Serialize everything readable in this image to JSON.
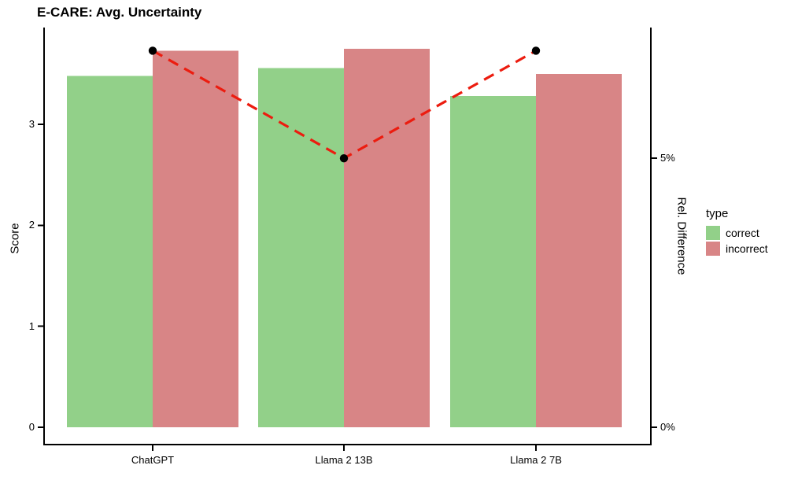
{
  "chart_data": {
    "type": "bar",
    "title": "E-CARE: Avg. Uncertainty",
    "categories": [
      "ChatGPT",
      "Llama 2 13B",
      "Llama 2 7B"
    ],
    "series": [
      {
        "name": "correct",
        "color": "#92D089",
        "values": [
          3.48,
          3.56,
          3.28
        ]
      },
      {
        "name": "incorrect",
        "color": "#D88586",
        "values": [
          3.73,
          3.75,
          3.5
        ]
      }
    ],
    "line_series": {
      "name": "Rel. Difference",
      "axis": "right",
      "style": "dashed",
      "color": "#EC1C0F",
      "marker_color": "#000000",
      "values_pct": [
        7.0,
        5.0,
        7.0
      ]
    },
    "left_axis": {
      "label": "Score",
      "ticks": [
        0,
        1,
        2,
        3
      ],
      "range": [
        0,
        3.96
      ]
    },
    "right_axis": {
      "label": "Rel. Difference",
      "ticks": [
        {
          "value": 0,
          "label": "0%"
        },
        {
          "value": 5,
          "label": "5%"
        }
      ],
      "range_pct": [
        0,
        7.43
      ]
    },
    "legend": {
      "title": "type",
      "entries": [
        {
          "label": "correct",
          "color": "#92D089"
        },
        {
          "label": "incorrect",
          "color": "#D88586"
        }
      ]
    },
    "grid": false,
    "background": "#FFFFFF",
    "axis_color": "#000000"
  }
}
